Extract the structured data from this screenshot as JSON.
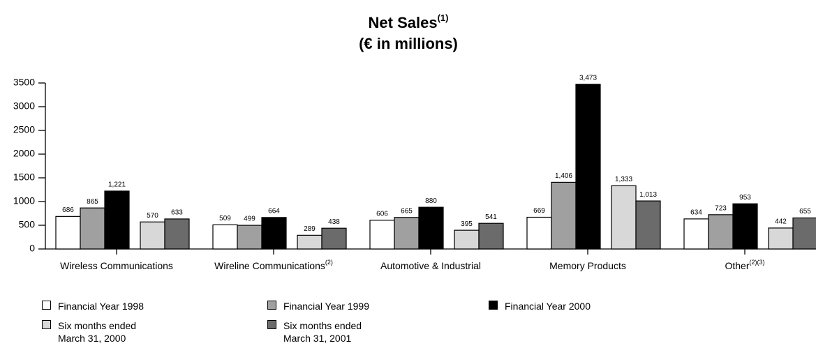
{
  "chart_data": {
    "type": "bar",
    "title": "Net Sales",
    "title_note": "(1)",
    "subtitle": "(€ in millions)",
    "categories": [
      "Wireless Communications",
      "Wireline Communications",
      "Automotive & Industrial",
      "Memory Products",
      "Other"
    ],
    "category_notes": [
      null,
      "(2)",
      null,
      null,
      "(2)(3)"
    ],
    "series": [
      {
        "name": "Financial Year 1998",
        "color": "#ffffff",
        "values": [
          686,
          509,
          606,
          669,
          634
        ],
        "value_labels": [
          "686",
          "509",
          "606",
          "669",
          "634"
        ]
      },
      {
        "name": "Financial Year 1999",
        "color": "#a0a0a0",
        "values": [
          865,
          499,
          665,
          1406,
          723
        ],
        "value_labels": [
          "865",
          "499",
          "665",
          "1,406",
          "723"
        ]
      },
      {
        "name": "Financial Year 2000",
        "color": "#000000",
        "values": [
          1221,
          664,
          880,
          3473,
          953
        ],
        "value_labels": [
          "1,221",
          "664",
          "880",
          "3,473",
          "953"
        ]
      },
      {
        "name": "Six months ended March 31, 2000",
        "color": "#d8d8d8",
        "values": [
          570,
          289,
          395,
          1333,
          442
        ],
        "value_labels": [
          "570",
          "289",
          "395",
          "1,333",
          "442"
        ]
      },
      {
        "name": "Six months ended March 31, 2001",
        "color": "#6b6b6b",
        "values": [
          633,
          438,
          541,
          1013,
          655
        ],
        "value_labels": [
          "633",
          "438",
          "541",
          "1,013",
          "655"
        ]
      }
    ],
    "ylim": [
      0,
      3500
    ],
    "yticks": [
      0,
      500,
      1000,
      1500,
      2000,
      2500,
      3000,
      3500
    ]
  }
}
